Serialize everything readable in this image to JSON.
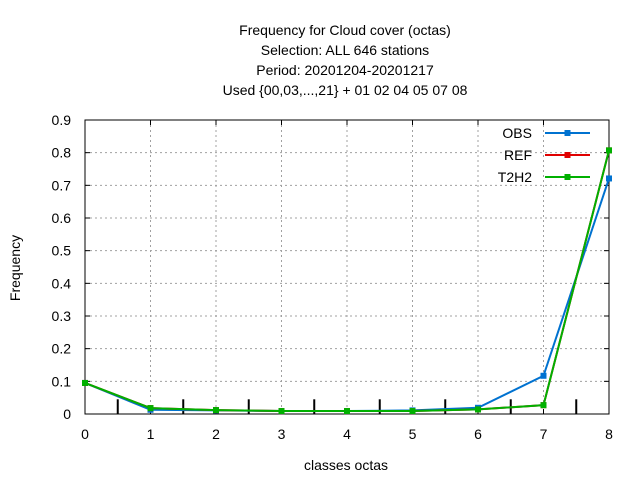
{
  "chart_data": {
    "type": "line",
    "title_lines": [
      "Frequency  for Cloud cover (octas)",
      "Selection: ALL    646 stations",
      "Period: 20201204-20201217",
      "Used {00,03,...,21} + 01 02 04 05 07 08"
    ],
    "xlabel": "classes octas",
    "ylabel": "Frequency",
    "xlim": [
      0,
      8
    ],
    "ylim": [
      0,
      0.9
    ],
    "x_ticks": [
      "0",
      "1",
      "2",
      "3",
      "4",
      "5",
      "6",
      "7",
      "8"
    ],
    "y_ticks": [
      "0",
      "0.1",
      "0.2",
      "0.3",
      "0.4",
      "0.5",
      "0.6",
      "0.7",
      "0.8",
      "0.9"
    ],
    "grid": true,
    "legend_position": "top-right",
    "x": [
      0,
      1,
      2,
      3,
      4,
      5,
      6,
      7,
      8
    ],
    "series": [
      {
        "name": "OBS",
        "color": "#0072d0",
        "values": [
          0.095,
          0.013,
          0.011,
          0.009,
          0.009,
          0.011,
          0.019,
          0.117,
          0.721
        ]
      },
      {
        "name": "REF",
        "color": "#e00000",
        "values": [
          0.095,
          0.018,
          0.012,
          0.009,
          0.009,
          0.009,
          0.014,
          0.027,
          0.807
        ]
      },
      {
        "name": "T2H2",
        "color": "#00b000",
        "values": [
          0.095,
          0.018,
          0.012,
          0.009,
          0.009,
          0.009,
          0.014,
          0.027,
          0.807
        ]
      }
    ],
    "x_markers": [
      0.5,
      1.5,
      2.5,
      3.5,
      4.5,
      5.5,
      6.5,
      7.5
    ],
    "marker_range": [
      0,
      0.045
    ]
  }
}
